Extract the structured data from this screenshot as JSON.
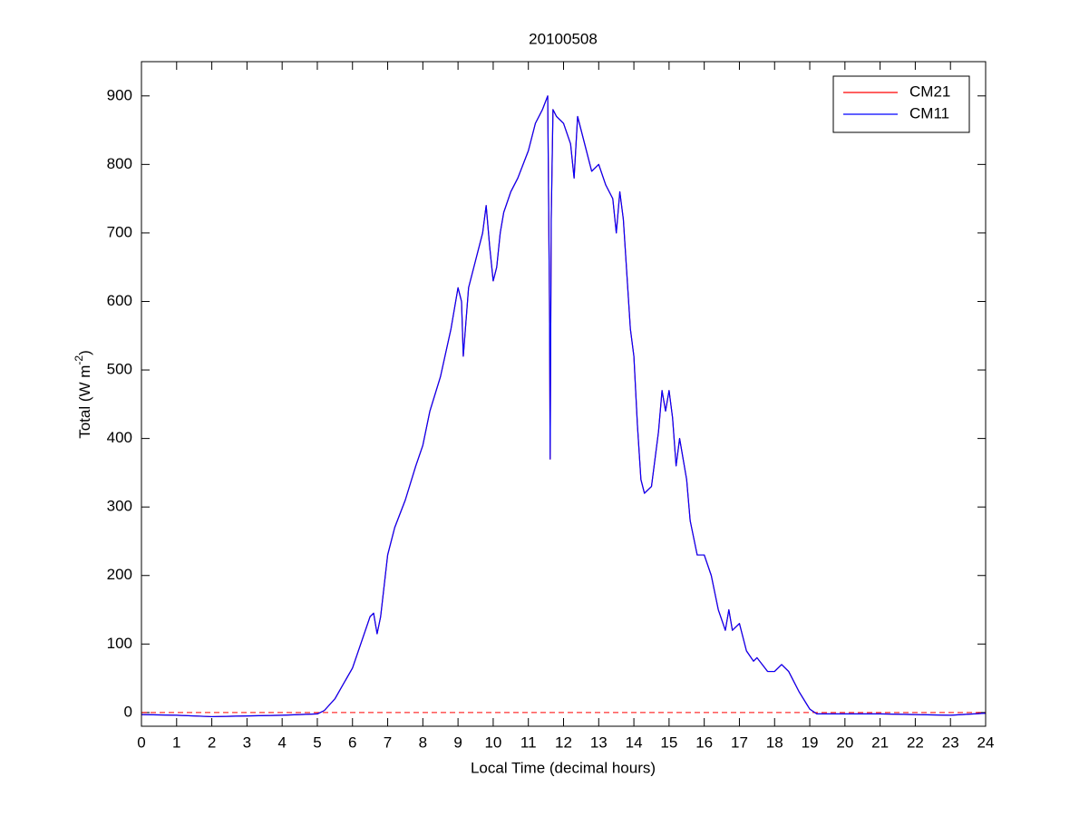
{
  "chart_data": {
    "type": "line",
    "title": "20100508",
    "xlabel": "Local Time (decimal hours)",
    "ylabel": [
      "Total (W m",
      "-2",
      ")"
    ],
    "x": [
      0,
      1,
      2,
      3,
      4,
      5,
      5.2,
      5.5,
      6,
      6.3,
      6.5,
      6.6,
      6.7,
      6.8,
      7,
      7.2,
      7.5,
      7.8,
      8,
      8.2,
      8.5,
      8.8,
      9,
      9.1,
      9.15,
      9.3,
      9.5,
      9.7,
      9.8,
      9.9,
      10,
      10.1,
      10.2,
      10.3,
      10.5,
      10.7,
      11,
      11.2,
      11.4,
      11.55,
      11.6,
      11.62,
      11.65,
      11.7,
      11.8,
      12,
      12.2,
      12.3,
      12.4,
      12.6,
      12.8,
      13,
      13.2,
      13.4,
      13.5,
      13.6,
      13.7,
      13.8,
      13.9,
      14,
      14.1,
      14.2,
      14.3,
      14.5,
      14.7,
      14.8,
      14.9,
      15,
      15.1,
      15.2,
      15.3,
      15.5,
      15.6,
      15.8,
      16,
      16.2,
      16.4,
      16.6,
      16.7,
      16.8,
      17,
      17.2,
      17.4,
      17.5,
      17.8,
      18,
      18.2,
      18.4,
      18.7,
      19,
      19.2,
      20,
      21,
      22,
      23,
      24
    ],
    "series": [
      {
        "name": "CM21",
        "color": "#ff0000",
        "values": [
          -3,
          -4,
          -6,
          -5,
          -4,
          -2,
          3,
          20,
          65,
          110,
          140,
          145,
          115,
          140,
          230,
          270,
          310,
          360,
          390,
          440,
          490,
          560,
          620,
          600,
          520,
          620,
          660,
          700,
          740,
          680,
          630,
          650,
          700,
          730,
          760,
          780,
          820,
          860,
          880,
          900,
          600,
          370,
          720,
          880,
          870,
          860,
          830,
          780,
          870,
          830,
          790,
          800,
          770,
          750,
          700,
          760,
          720,
          640,
          560,
          520,
          420,
          340,
          320,
          330,
          410,
          470,
          440,
          470,
          430,
          360,
          400,
          340,
          280,
          230,
          230,
          200,
          150,
          120,
          150,
          120,
          130,
          90,
          75,
          80,
          60,
          60,
          70,
          60,
          30,
          5,
          -2,
          -2,
          -2,
          -3,
          -4,
          -1
        ]
      },
      {
        "name": "CM11",
        "color": "#0000ff",
        "values": [
          -3,
          -4,
          -6,
          -5,
          -4,
          -2,
          3,
          20,
          65,
          110,
          140,
          145,
          115,
          140,
          230,
          270,
          310,
          360,
          390,
          440,
          490,
          560,
          620,
          600,
          520,
          620,
          660,
          700,
          740,
          680,
          630,
          650,
          700,
          730,
          760,
          780,
          820,
          860,
          880,
          900,
          600,
          370,
          720,
          880,
          870,
          860,
          830,
          780,
          870,
          830,
          790,
          800,
          770,
          750,
          700,
          760,
          720,
          640,
          560,
          520,
          420,
          340,
          320,
          330,
          410,
          470,
          440,
          470,
          430,
          360,
          400,
          340,
          280,
          230,
          230,
          200,
          150,
          120,
          150,
          120,
          130,
          90,
          75,
          80,
          60,
          60,
          70,
          60,
          30,
          5,
          -2,
          -2,
          -2,
          -3,
          -4,
          -1
        ]
      }
    ],
    "hline": {
      "value": 0,
      "color": "#ff0000",
      "style": "dashed"
    },
    "xlim": [
      0,
      24
    ],
    "xticks": [
      0,
      1,
      2,
      3,
      4,
      5,
      6,
      7,
      8,
      9,
      10,
      11,
      12,
      13,
      14,
      15,
      16,
      17,
      18,
      19,
      20,
      21,
      22,
      23,
      24
    ],
    "ylim": [
      -20,
      950
    ],
    "yticks": [
      0,
      100,
      200,
      300,
      400,
      500,
      600,
      700,
      800,
      900
    ],
    "grid": false,
    "legend": "upper right"
  }
}
